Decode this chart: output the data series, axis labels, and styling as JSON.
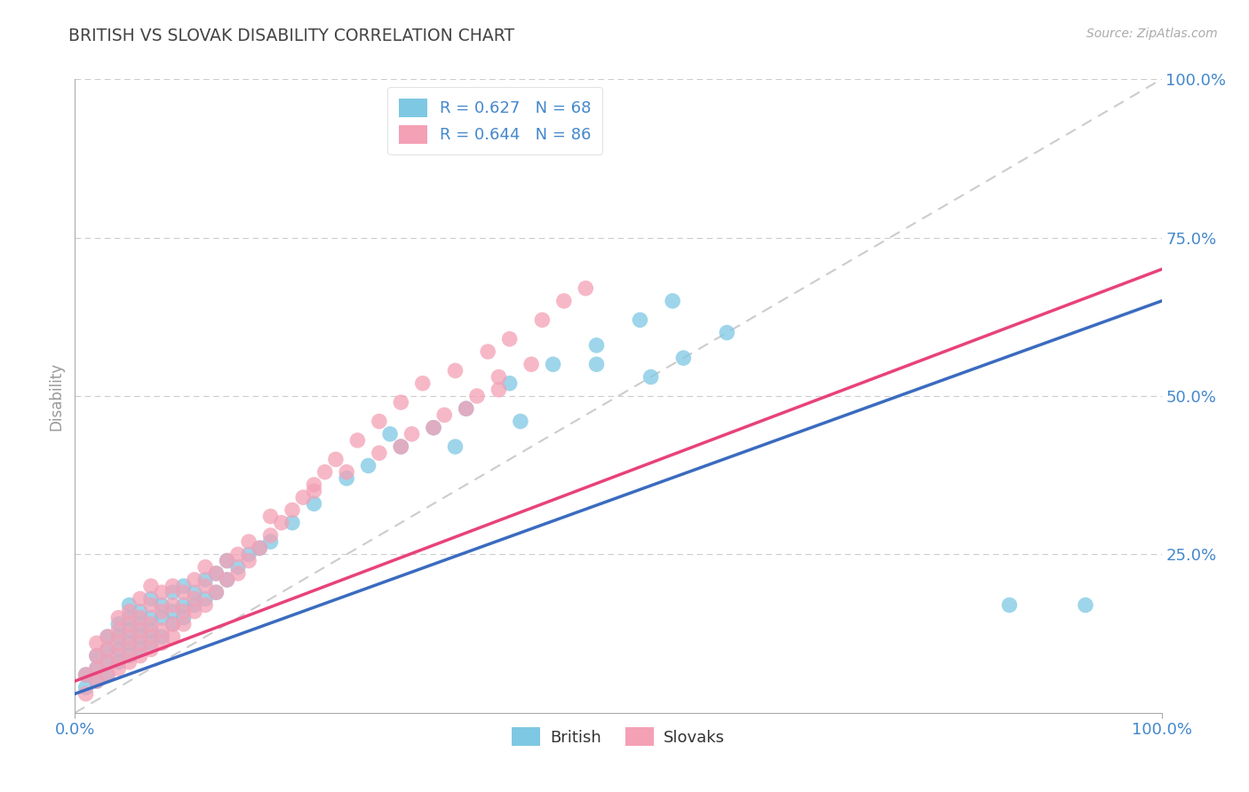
{
  "title": "BRITISH VS SLOVAK DISABILITY CORRELATION CHART",
  "source_text": "Source: ZipAtlas.com",
  "ylabel": "Disability",
  "british_R": 0.627,
  "british_N": 68,
  "slovak_R": 0.644,
  "slovak_N": 86,
  "british_color": "#7ec8e3",
  "slovak_color": "#f4a0b5",
  "british_line_color": "#3a6bbf",
  "slovak_line_color": "#e8427a",
  "ref_line_color": "#cccccc",
  "grid_color": "#cccccc",
  "title_color": "#444444",
  "axis_label_color": "#4488cc",
  "legend_text_color": "#4488cc",
  "background_color": "#ffffff",
  "xlim": [
    0,
    1
  ],
  "ylim": [
    0,
    1
  ],
  "xtick_labels": [
    "0.0%",
    "100.0%"
  ],
  "ytick_positions": [
    0.25,
    0.5,
    0.75,
    1.0
  ],
  "ytick_labels": [
    "25.0%",
    "50.0%",
    "75.0%",
    "100.0%"
  ],
  "british_line_x0": 0.0,
  "british_line_y0": 0.03,
  "british_line_x1": 1.0,
  "british_line_y1": 0.65,
  "slovak_line_x0": 0.0,
  "slovak_line_y0": 0.05,
  "slovak_line_x1": 1.0,
  "slovak_line_y1": 0.7,
  "british_scatter_x": [
    0.01,
    0.01,
    0.02,
    0.02,
    0.02,
    0.03,
    0.03,
    0.03,
    0.03,
    0.04,
    0.04,
    0.04,
    0.04,
    0.05,
    0.05,
    0.05,
    0.05,
    0.05,
    0.06,
    0.06,
    0.06,
    0.06,
    0.07,
    0.07,
    0.07,
    0.07,
    0.08,
    0.08,
    0.08,
    0.09,
    0.09,
    0.09,
    0.1,
    0.1,
    0.1,
    0.11,
    0.11,
    0.12,
    0.12,
    0.13,
    0.13,
    0.14,
    0.14,
    0.15,
    0.16,
    0.17,
    0.18,
    0.2,
    0.22,
    0.25,
    0.27,
    0.3,
    0.33,
    0.36,
    0.4,
    0.44,
    0.48,
    0.52,
    0.56,
    0.6,
    0.29,
    0.35,
    0.41,
    0.48,
    0.53,
    0.55,
    0.86,
    0.93
  ],
  "british_scatter_y": [
    0.04,
    0.06,
    0.05,
    0.07,
    0.09,
    0.06,
    0.08,
    0.1,
    0.12,
    0.08,
    0.1,
    0.12,
    0.14,
    0.09,
    0.11,
    0.13,
    0.15,
    0.17,
    0.1,
    0.12,
    0.14,
    0.16,
    0.11,
    0.13,
    0.15,
    0.18,
    0.12,
    0.15,
    0.17,
    0.14,
    0.16,
    0.19,
    0.15,
    0.17,
    0.2,
    0.17,
    0.19,
    0.18,
    0.21,
    0.19,
    0.22,
    0.21,
    0.24,
    0.23,
    0.25,
    0.26,
    0.27,
    0.3,
    0.33,
    0.37,
    0.39,
    0.42,
    0.45,
    0.48,
    0.52,
    0.55,
    0.58,
    0.62,
    0.56,
    0.6,
    0.44,
    0.42,
    0.46,
    0.55,
    0.53,
    0.65,
    0.17,
    0.17
  ],
  "slovak_scatter_x": [
    0.01,
    0.01,
    0.02,
    0.02,
    0.02,
    0.02,
    0.03,
    0.03,
    0.03,
    0.03,
    0.04,
    0.04,
    0.04,
    0.04,
    0.04,
    0.05,
    0.05,
    0.05,
    0.05,
    0.05,
    0.06,
    0.06,
    0.06,
    0.06,
    0.06,
    0.07,
    0.07,
    0.07,
    0.07,
    0.07,
    0.08,
    0.08,
    0.08,
    0.08,
    0.09,
    0.09,
    0.09,
    0.09,
    0.1,
    0.1,
    0.1,
    0.11,
    0.11,
    0.11,
    0.12,
    0.12,
    0.12,
    0.13,
    0.13,
    0.14,
    0.14,
    0.15,
    0.15,
    0.16,
    0.16,
    0.17,
    0.18,
    0.18,
    0.19,
    0.2,
    0.21,
    0.22,
    0.23,
    0.24,
    0.26,
    0.28,
    0.3,
    0.32,
    0.35,
    0.38,
    0.4,
    0.43,
    0.45,
    0.47,
    0.3,
    0.33,
    0.36,
    0.39,
    0.22,
    0.25,
    0.28,
    0.31,
    0.34,
    0.37,
    0.39,
    0.42
  ],
  "slovak_scatter_y": [
    0.03,
    0.06,
    0.05,
    0.07,
    0.09,
    0.11,
    0.06,
    0.08,
    0.1,
    0.12,
    0.07,
    0.09,
    0.11,
    0.13,
    0.15,
    0.08,
    0.1,
    0.12,
    0.14,
    0.16,
    0.09,
    0.11,
    0.13,
    0.15,
    0.18,
    0.1,
    0.12,
    0.14,
    0.17,
    0.2,
    0.11,
    0.13,
    0.16,
    0.19,
    0.12,
    0.14,
    0.17,
    0.2,
    0.14,
    0.16,
    0.19,
    0.16,
    0.18,
    0.21,
    0.17,
    0.2,
    0.23,
    0.19,
    0.22,
    0.21,
    0.24,
    0.22,
    0.25,
    0.24,
    0.27,
    0.26,
    0.28,
    0.31,
    0.3,
    0.32,
    0.34,
    0.36,
    0.38,
    0.4,
    0.43,
    0.46,
    0.49,
    0.52,
    0.54,
    0.57,
    0.59,
    0.62,
    0.65,
    0.67,
    0.42,
    0.45,
    0.48,
    0.51,
    0.35,
    0.38,
    0.41,
    0.44,
    0.47,
    0.5,
    0.53,
    0.55
  ]
}
